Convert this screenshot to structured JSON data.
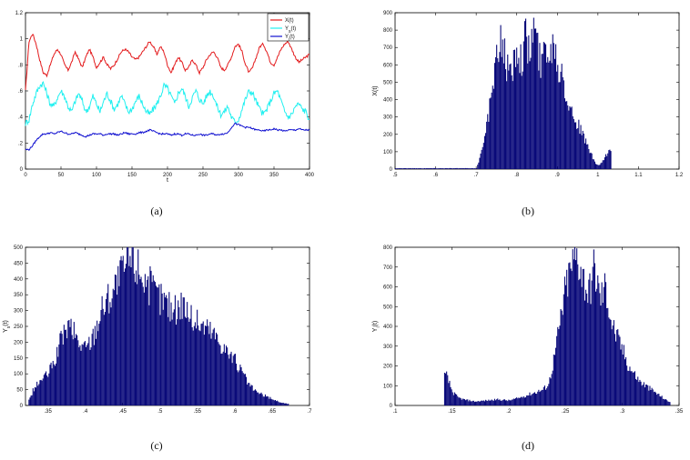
{
  "chart_data": [
    {
      "id": "a",
      "type": "line",
      "caption": "(a)",
      "xlabel": "t",
      "ylabel": "",
      "xlim": [
        0,
        400
      ],
      "ylim": [
        0,
        1.2
      ],
      "xticks": [
        0,
        50,
        100,
        150,
        200,
        250,
        300,
        350,
        400
      ],
      "yticks": [
        0,
        0.2,
        0.4,
        0.6,
        0.8,
        1,
        1.2
      ],
      "legend_position": "top-right",
      "x": [
        0,
        5,
        10,
        15,
        20,
        25,
        30,
        35,
        40,
        45,
        50,
        55,
        60,
        65,
        70,
        75,
        80,
        85,
        90,
        95,
        100,
        105,
        110,
        115,
        120,
        125,
        130,
        135,
        140,
        145,
        150,
        155,
        160,
        165,
        170,
        175,
        180,
        185,
        190,
        195,
        200,
        205,
        210,
        215,
        220,
        225,
        230,
        235,
        240,
        245,
        250,
        255,
        260,
        265,
        270,
        275,
        280,
        285,
        290,
        295,
        300,
        305,
        310,
        315,
        320,
        325,
        330,
        335,
        340,
        345,
        350,
        355,
        360,
        365,
        370,
        375,
        380,
        385,
        390,
        395,
        400
      ],
      "series": [
        {
          "name": "X(t)",
          "color": "#e31a1c",
          "values": [
            0.6,
            0.98,
            1.04,
            0.96,
            0.84,
            0.74,
            0.72,
            0.8,
            0.88,
            0.92,
            0.88,
            0.8,
            0.76,
            0.82,
            0.9,
            0.84,
            0.78,
            0.86,
            0.92,
            0.86,
            0.78,
            0.82,
            0.86,
            0.8,
            0.77,
            0.8,
            0.85,
            0.9,
            0.92,
            0.9,
            0.86,
            0.84,
            0.86,
            0.9,
            0.94,
            0.98,
            0.94,
            0.88,
            0.94,
            0.9,
            0.8,
            0.74,
            0.8,
            0.86,
            0.82,
            0.76,
            0.78,
            0.84,
            0.8,
            0.74,
            0.78,
            0.84,
            0.88,
            0.9,
            0.86,
            0.78,
            0.76,
            0.8,
            0.86,
            0.94,
            0.96,
            0.9,
            0.8,
            0.74,
            0.78,
            0.86,
            0.94,
            0.96,
            0.9,
            0.82,
            0.8,
            0.86,
            0.92,
            0.96,
            0.98,
            0.92,
            0.86,
            0.82,
            0.84,
            0.86,
            0.88
          ]
        },
        {
          "name": "Y_s(t)",
          "color": "#22f0f0",
          "values": [
            0.35,
            0.38,
            0.5,
            0.58,
            0.64,
            0.66,
            0.58,
            0.5,
            0.48,
            0.55,
            0.6,
            0.56,
            0.48,
            0.44,
            0.52,
            0.58,
            0.52,
            0.44,
            0.48,
            0.56,
            0.5,
            0.44,
            0.52,
            0.58,
            0.52,
            0.46,
            0.5,
            0.56,
            0.5,
            0.44,
            0.46,
            0.52,
            0.56,
            0.5,
            0.44,
            0.42,
            0.46,
            0.5,
            0.56,
            0.64,
            0.62,
            0.56,
            0.5,
            0.58,
            0.62,
            0.56,
            0.48,
            0.55,
            0.6,
            0.54,
            0.5,
            0.56,
            0.6,
            0.56,
            0.48,
            0.42,
            0.44,
            0.48,
            0.4,
            0.36,
            0.38,
            0.46,
            0.54,
            0.6,
            0.58,
            0.52,
            0.46,
            0.42,
            0.46,
            0.52,
            0.58,
            0.6,
            0.52,
            0.44,
            0.4,
            0.42,
            0.48,
            0.5,
            0.46,
            0.44,
            0.38
          ]
        },
        {
          "name": "Y_i(t)",
          "color": "#1010d0",
          "values": [
            0.15,
            0.15,
            0.18,
            0.22,
            0.25,
            0.27,
            0.27,
            0.28,
            0.27,
            0.28,
            0.29,
            0.28,
            0.27,
            0.27,
            0.28,
            0.27,
            0.26,
            0.25,
            0.26,
            0.27,
            0.27,
            0.27,
            0.26,
            0.27,
            0.27,
            0.27,
            0.26,
            0.27,
            0.28,
            0.27,
            0.27,
            0.27,
            0.28,
            0.28,
            0.29,
            0.3,
            0.29,
            0.28,
            0.27,
            0.27,
            0.27,
            0.26,
            0.27,
            0.27,
            0.26,
            0.27,
            0.27,
            0.26,
            0.26,
            0.27,
            0.26,
            0.26,
            0.27,
            0.27,
            0.26,
            0.27,
            0.27,
            0.28,
            0.32,
            0.35,
            0.34,
            0.33,
            0.32,
            0.32,
            0.31,
            0.3,
            0.3,
            0.29,
            0.3,
            0.3,
            0.31,
            0.3,
            0.3,
            0.29,
            0.3,
            0.3,
            0.3,
            0.31,
            0.3,
            0.3,
            0.3
          ]
        }
      ]
    },
    {
      "id": "b",
      "type": "bar",
      "caption": "(b)",
      "xlabel": "",
      "ylabel": "X(t)",
      "xlim": [
        0.5,
        1.2
      ],
      "ylim": [
        0,
        900
      ],
      "xticks": [
        0.5,
        0.6,
        0.7,
        0.8,
        0.9,
        1,
        1.1,
        1.2
      ],
      "yticks": [
        0,
        100,
        200,
        300,
        400,
        500,
        600,
        700,
        800,
        900
      ],
      "color": "#0a0a7a",
      "x": [
        0.5,
        0.55,
        0.6,
        0.65,
        0.7,
        0.71,
        0.72,
        0.73,
        0.74,
        0.75,
        0.76,
        0.77,
        0.78,
        0.79,
        0.8,
        0.81,
        0.82,
        0.83,
        0.84,
        0.85,
        0.86,
        0.87,
        0.88,
        0.89,
        0.9,
        0.91,
        0.92,
        0.93,
        0.94,
        0.95,
        0.96,
        0.97,
        0.98,
        0.99,
        1.0,
        1.01,
        1.02,
        1.03
      ],
      "values": [
        5,
        5,
        5,
        5,
        5,
        80,
        220,
        320,
        480,
        620,
        780,
        660,
        520,
        600,
        740,
        620,
        780,
        640,
        840,
        700,
        580,
        780,
        620,
        800,
        560,
        620,
        440,
        360,
        300,
        260,
        200,
        150,
        100,
        40,
        20,
        40,
        80,
        120
      ]
    },
    {
      "id": "c",
      "type": "bar",
      "caption": "(c)",
      "xlabel": "",
      "ylabel": "Y_s(t)",
      "xlim": [
        0.32,
        0.7
      ],
      "ylim": [
        0,
        500
      ],
      "xticks": [
        0.35,
        0.4,
        0.45,
        0.5,
        0.55,
        0.6,
        0.65,
        0.7
      ],
      "yticks": [
        0,
        50,
        100,
        150,
        200,
        250,
        300,
        350,
        400,
        450,
        500
      ],
      "color": "#0a0a7a",
      "x": [
        0.325,
        0.33,
        0.34,
        0.35,
        0.36,
        0.37,
        0.38,
        0.39,
        0.4,
        0.41,
        0.42,
        0.43,
        0.44,
        0.45,
        0.46,
        0.47,
        0.48,
        0.49,
        0.5,
        0.51,
        0.52,
        0.53,
        0.54,
        0.55,
        0.56,
        0.57,
        0.58,
        0.59,
        0.6,
        0.61,
        0.62,
        0.63,
        0.64,
        0.65,
        0.66,
        0.67
      ],
      "values": [
        20,
        50,
        80,
        100,
        150,
        230,
        250,
        200,
        180,
        220,
        300,
        340,
        380,
        420,
        470,
        440,
        400,
        360,
        340,
        320,
        300,
        330,
        280,
        260,
        250,
        230,
        200,
        170,
        140,
        100,
        60,
        40,
        30,
        20,
        10,
        5
      ]
    },
    {
      "id": "d",
      "type": "bar",
      "caption": "(d)",
      "xlabel": "",
      "ylabel": "Y_i(t)",
      "xlim": [
        0.1,
        0.35
      ],
      "ylim": [
        0,
        800
      ],
      "xticks": [
        0.1,
        0.15,
        0.2,
        0.25,
        0.3,
        0.35
      ],
      "yticks": [
        0,
        100,
        200,
        300,
        400,
        500,
        600,
        700,
        800
      ],
      "color": "#0a0a7a",
      "x": [
        0.145,
        0.15,
        0.155,
        0.16,
        0.165,
        0.17,
        0.18,
        0.19,
        0.2,
        0.21,
        0.22,
        0.23,
        0.235,
        0.24,
        0.245,
        0.25,
        0.255,
        0.26,
        0.265,
        0.27,
        0.275,
        0.28,
        0.285,
        0.29,
        0.295,
        0.3,
        0.305,
        0.31,
        0.315,
        0.32,
        0.325,
        0.33,
        0.335,
        0.34
      ],
      "values": [
        150,
        70,
        40,
        30,
        25,
        20,
        25,
        30,
        25,
        40,
        60,
        80,
        110,
        250,
        420,
        600,
        700,
        760,
        650,
        560,
        700,
        540,
        600,
        420,
        340,
        280,
        200,
        160,
        120,
        100,
        80,
        60,
        40,
        20
      ]
    }
  ]
}
